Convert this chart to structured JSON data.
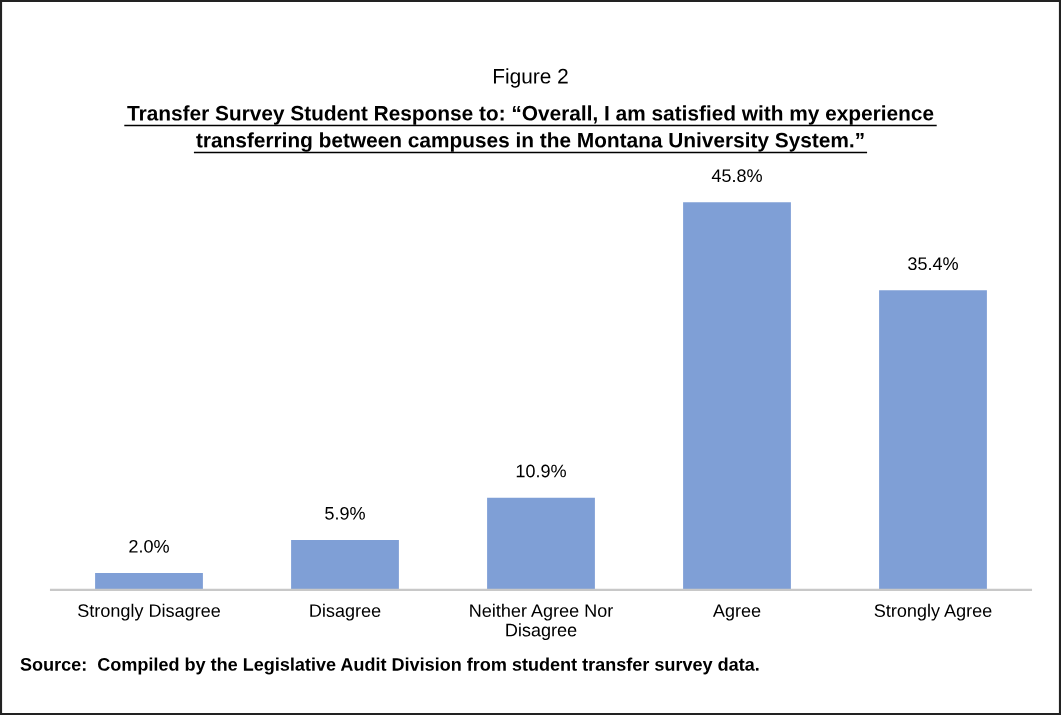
{
  "chart_data": {
    "type": "bar",
    "title": "Figure 2",
    "subtitle": "Transfer Survey Student Response to: “Overall, I am satisfied with my experience\ntransferring between campuses in the Montana University System.”",
    "categories": [
      "Strongly Disagree",
      "Disagree",
      "Neither Agree Nor\nDisagree",
      "Agree",
      "Strongly Agree"
    ],
    "values": [
      2.0,
      5.9,
      10.9,
      45.8,
      35.4
    ],
    "value_labels": [
      "2.0%",
      "5.9%",
      "10.9%",
      "45.8%",
      "35.4%"
    ],
    "color": "#7f9fd6",
    "grid": false,
    "legend": false,
    "annotations": [
      "Source:  Compiled by the Legislative Audit Division from student transfer survey data."
    ]
  }
}
